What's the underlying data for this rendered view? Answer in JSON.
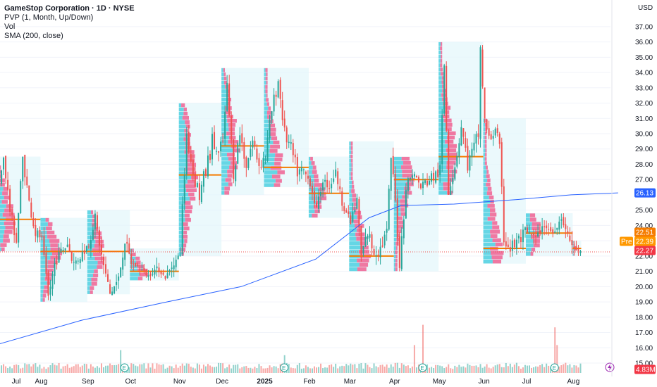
{
  "legend": {
    "title": "GameStop Corporation · 1D · NYSE",
    "indicator_pvp": "PVP (1, Month, Up/Down)",
    "indicator_vol": "Vol",
    "indicator_sma": "SMA (200, close)"
  },
  "axis": {
    "currency": "USD",
    "y_ticks": [
      "37.00",
      "36.00",
      "35.00",
      "34.00",
      "33.00",
      "32.00",
      "31.00",
      "30.00",
      "29.00",
      "28.00",
      "27.00",
      "26.00",
      "25.00",
      "24.00",
      "23.00",
      "22.00",
      "21.00",
      "20.00",
      "19.00",
      "18.00",
      "17.00",
      "16.00",
      "15.00"
    ],
    "x_ticks": [
      {
        "label": "Jul",
        "bold": false
      },
      {
        "label": "Aug",
        "bold": false
      },
      {
        "label": "Sep",
        "bold": false
      },
      {
        "label": "Oct",
        "bold": false
      },
      {
        "label": "Nov",
        "bold": false
      },
      {
        "label": "Dec",
        "bold": false
      },
      {
        "label": "2025",
        "bold": true
      },
      {
        "label": "Feb",
        "bold": false
      },
      {
        "label": "Mar",
        "bold": false
      },
      {
        "label": "Apr",
        "bold": false
      },
      {
        "label": "May",
        "bold": false
      },
      {
        "label": "Jun",
        "bold": false
      },
      {
        "label": "Jul",
        "bold": false
      },
      {
        "label": "Aug",
        "bold": false
      }
    ]
  },
  "price_tags": {
    "sma": {
      "label": "26.13",
      "color": "#2962ff"
    },
    "poc": {
      "label": "22.51",
      "color": "#f57c00"
    },
    "pre": {
      "label": "22.39",
      "prefix": "Pre",
      "color": "#ff9800"
    },
    "last": {
      "label": "22.27",
      "color": "#f23645"
    },
    "volume": {
      "label": "4.83M",
      "color": "#f23645"
    }
  },
  "colors": {
    "up": "#26a69a",
    "down": "#ef5350",
    "sma": "#2962ff",
    "poc": "#f57c00",
    "profile_up": "#4dd0e1",
    "profile_down": "#f06292",
    "profile_bg": "#e3f6fb"
  },
  "chart_data": {
    "type": "candlestick",
    "title": "GameStop Corporation · 1D · NYSE",
    "ylim": [
      15,
      37.5
    ],
    "months": [
      {
        "label": "Jul",
        "candles": 21,
        "poc": 24.4,
        "low": 22.3,
        "high": 28.5,
        "path": [
          [
            0,
            25.5
          ],
          [
            3,
            28.5
          ],
          [
            6,
            25.0
          ],
          [
            9,
            23.0
          ],
          [
            12,
            28.5
          ],
          [
            15,
            25.5
          ],
          [
            18,
            23.5
          ],
          [
            21,
            23.2
          ]
        ]
      },
      {
        "label": "Aug",
        "candles": 22,
        "poc": 22.3,
        "low": 19.0,
        "high": 24.5,
        "path": [
          [
            0,
            23.0
          ],
          [
            3,
            19.3
          ],
          [
            6,
            21.5
          ],
          [
            9,
            22.3
          ],
          [
            12,
            22.8
          ],
          [
            15,
            21.5
          ],
          [
            18,
            22.0
          ],
          [
            22,
            22.8
          ]
        ]
      },
      {
        "label": "Sep",
        "candles": 20,
        "poc": 22.3,
        "low": 19.5,
        "high": 25.0,
        "path": [
          [
            0,
            22.8
          ],
          [
            3,
            24.5
          ],
          [
            6,
            22.0
          ],
          [
            10,
            19.5
          ],
          [
            14,
            20.5
          ],
          [
            17,
            23.0
          ],
          [
            20,
            21.5
          ]
        ]
      },
      {
        "label": "Oct",
        "candles": 23,
        "poc": 21.0,
        "low": 20.4,
        "high": 22.5,
        "path": [
          [
            0,
            21.5
          ],
          [
            4,
            21.2
          ],
          [
            8,
            20.7
          ],
          [
            12,
            21.2
          ],
          [
            16,
            20.6
          ],
          [
            20,
            21.5
          ],
          [
            23,
            22.2
          ]
        ]
      },
      {
        "label": "Nov",
        "candles": 20,
        "poc": 27.3,
        "low": 22.0,
        "high": 32.0,
        "path": [
          [
            0,
            22.5
          ],
          [
            3,
            30.0
          ],
          [
            6,
            27.5
          ],
          [
            9,
            26.0
          ],
          [
            12,
            27.5
          ],
          [
            15,
            29.5
          ],
          [
            18,
            28.5
          ],
          [
            20,
            29.5
          ]
        ]
      },
      {
        "label": "Dec",
        "candles": 20,
        "poc": 29.2,
        "low": 26.0,
        "high": 34.3,
        "path": [
          [
            0,
            29.5
          ],
          [
            2,
            33.0
          ],
          [
            5,
            27.5
          ],
          [
            8,
            30.0
          ],
          [
            11,
            28.0
          ],
          [
            14,
            29.5
          ],
          [
            17,
            28.0
          ],
          [
            20,
            28.5
          ]
        ]
      },
      {
        "label": "Jan",
        "candles": 21,
        "poc": 27.8,
        "low": 26.5,
        "high": 34.3,
        "path": [
          [
            0,
            28.5
          ],
          [
            3,
            31.5
          ],
          [
            6,
            33.5
          ],
          [
            9,
            30.0
          ],
          [
            12,
            29.0
          ],
          [
            15,
            27.5
          ],
          [
            18,
            27.5
          ],
          [
            21,
            26.8
          ]
        ]
      },
      {
        "label": "Feb",
        "candles": 19,
        "poc": 26.1,
        "low": 24.5,
        "high": 28.5,
        "path": [
          [
            0,
            26.8
          ],
          [
            3,
            25.0
          ],
          [
            6,
            27.0
          ],
          [
            9,
            26.5
          ],
          [
            12,
            27.5
          ],
          [
            15,
            25.5
          ],
          [
            19,
            24.2
          ]
        ]
      },
      {
        "label": "Mar",
        "candles": 21,
        "poc": 22.0,
        "low": 21.0,
        "high": 29.5,
        "path": [
          [
            0,
            24.2
          ],
          [
            3,
            25.5
          ],
          [
            5,
            22.0
          ],
          [
            8,
            23.5
          ],
          [
            11,
            22.3
          ],
          [
            14,
            22.5
          ],
          [
            17,
            23.5
          ],
          [
            19,
            28.5
          ],
          [
            21,
            25.5
          ]
        ]
      },
      {
        "label": "Apr",
        "candles": 21,
        "poc": 27.0,
        "low": 21.0,
        "high": 28.5,
        "path": [
          [
            0,
            25.5
          ],
          [
            2,
            21.5
          ],
          [
            5,
            26.5
          ],
          [
            8,
            27.5
          ],
          [
            12,
            26.5
          ],
          [
            16,
            27.0
          ],
          [
            21,
            27.5
          ]
        ]
      },
      {
        "label": "May",
        "candles": 21,
        "poc": 28.5,
        "low": 26.0,
        "high": 36.0,
        "path": [
          [
            0,
            27.5
          ],
          [
            2,
            34.5
          ],
          [
            4,
            26.5
          ],
          [
            7,
            28.0
          ],
          [
            10,
            30.5
          ],
          [
            13,
            28.0
          ],
          [
            16,
            29.0
          ],
          [
            18,
            30.0
          ],
          [
            19,
            35.5
          ],
          [
            21,
            31.0
          ]
        ]
      },
      {
        "label": "Jun",
        "candles": 20,
        "poc": 22.5,
        "low": 21.5,
        "high": 31.0,
        "path": [
          [
            0,
            31.0
          ],
          [
            2,
            29.5
          ],
          [
            5,
            30.5
          ],
          [
            7,
            28.8
          ],
          [
            9,
            23.2
          ],
          [
            12,
            22.5
          ],
          [
            16,
            23.0
          ],
          [
            20,
            23.5
          ]
        ]
      },
      {
        "label": "Jul",
        "candles": 22,
        "poc": 23.5,
        "low": 22.0,
        "high": 24.8,
        "path": [
          [
            0,
            23.5
          ],
          [
            4,
            23.2
          ],
          [
            8,
            24.0
          ],
          [
            12,
            23.5
          ],
          [
            16,
            24.5
          ],
          [
            20,
            23.0
          ],
          [
            22,
            22.5
          ]
        ]
      },
      {
        "label": "Aug",
        "candles": 4,
        "poc": 22.5,
        "low": 22.0,
        "high": 23.0,
        "path": [
          [
            0,
            22.5
          ],
          [
            2,
            22.3
          ],
          [
            4,
            22.27
          ]
        ]
      }
    ],
    "sma200": [
      [
        0,
        16.2
      ],
      [
        40,
        17.8
      ],
      [
        80,
        19.0
      ],
      [
        115,
        20.0
      ],
      [
        150,
        21.8
      ],
      [
        175,
        24.5
      ],
      [
        190,
        25.3
      ],
      [
        215,
        25.4
      ],
      [
        245,
        25.7
      ],
      [
        270,
        26.0
      ],
      [
        292,
        26.13
      ]
    ],
    "earnings_markers": [
      60,
      135,
      200,
      262
    ],
    "volume": {
      "last": "4.83M",
      "spikes": [
        [
          0,
          0.65
        ],
        [
          58,
          0.45
        ],
        [
          135,
          0.35
        ],
        [
          196,
          0.55
        ],
        [
          200,
          0.95
        ],
        [
          262,
          0.9
        ],
        [
          263,
          0.55
        ],
        [
          278,
          0.3
        ]
      ]
    }
  }
}
